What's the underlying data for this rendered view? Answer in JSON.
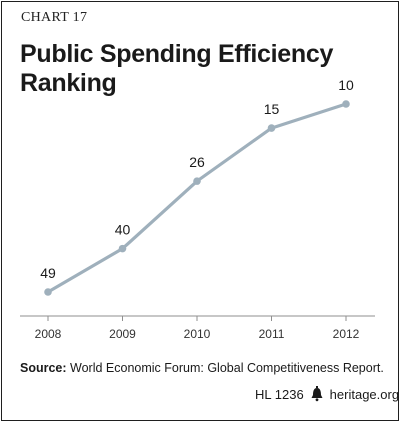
{
  "header": {
    "chart_label": "CHART 17",
    "title": "Public Spending Efficiency Ranking"
  },
  "source": {
    "prefix": "Source:",
    "text": "World Economic Forum: Global Competitiveness Report."
  },
  "footer": {
    "code": "HL 1236",
    "site": "heritage.org",
    "icon": "liberty-bell-icon"
  },
  "colors": {
    "line": "#9fb0bc",
    "point": "#9fb0bc",
    "axis": "#8f8f8f",
    "text": "#1a1a1a"
  },
  "chart_data": {
    "type": "line",
    "title": "Public Spending Efficiency Ranking",
    "categories": [
      "2008",
      "2009",
      "2010",
      "2011",
      "2012"
    ],
    "values": [
      49,
      40,
      26,
      15,
      10
    ],
    "xlabel": "",
    "ylabel": "",
    "ylim": [
      55,
      5
    ],
    "y_inverted": true,
    "grid": false,
    "legend": "none"
  }
}
